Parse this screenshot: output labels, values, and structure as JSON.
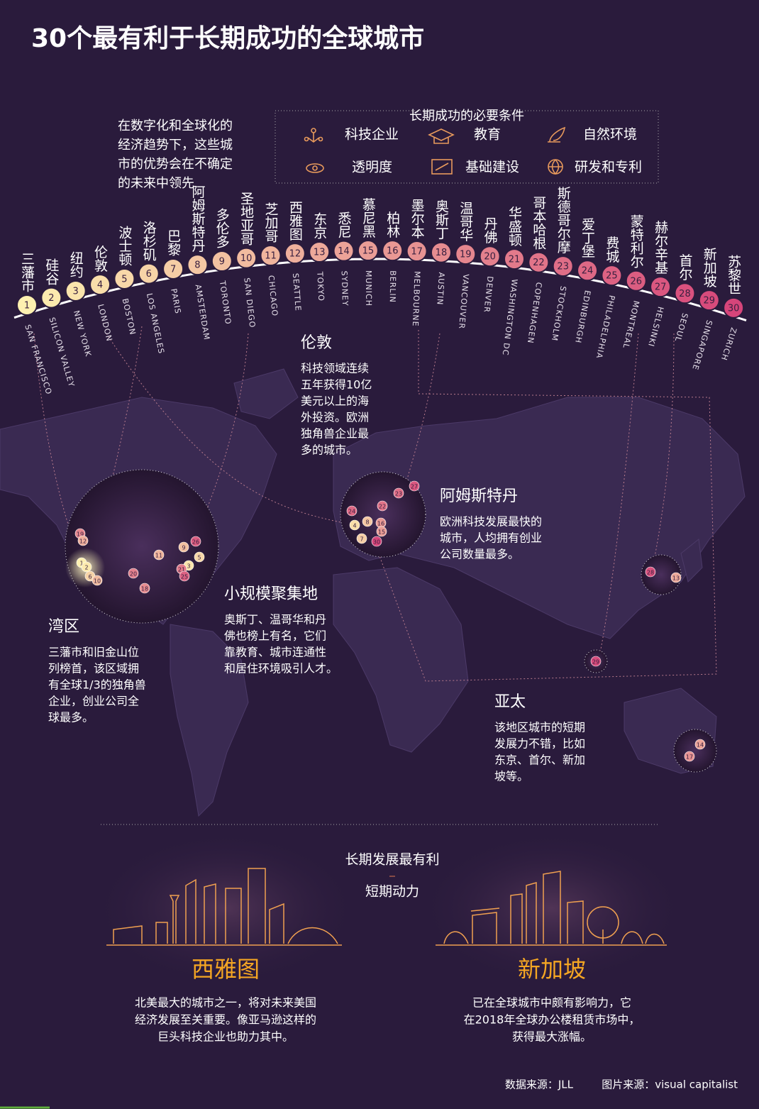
{
  "header": {
    "title": "30个最有利于长期成功的全球城市",
    "intro": [
      "在数字化和全球化的",
      "经济趋势下，这些城",
      "市的优势会在不确定",
      "的未来中领先"
    ]
  },
  "legend": {
    "title": "长期成功的必要条件",
    "items": [
      "科技企业",
      "教育",
      "自然环境",
      "透明度",
      "基础建设",
      "研发和专利"
    ]
  },
  "cities": [
    {
      "rank": 1,
      "name": "三藩市",
      "name_en": "SAN FRANCISCO"
    },
    {
      "rank": 2,
      "name": "硅谷",
      "name_en": "SILICON VALLEY"
    },
    {
      "rank": 3,
      "name": "纽约",
      "name_en": "NEW YORK"
    },
    {
      "rank": 4,
      "name": "伦敦",
      "name_en": "LONDON"
    },
    {
      "rank": 5,
      "name": "波士顿",
      "name_en": "BOSTON"
    },
    {
      "rank": 6,
      "name": "洛杉矶",
      "name_en": "LOS ANGELES"
    },
    {
      "rank": 7,
      "name": "巴黎",
      "name_en": "PARIS"
    },
    {
      "rank": 8,
      "name": "阿姆斯特丹",
      "name_en": "AMSTERDAM"
    },
    {
      "rank": 9,
      "name": "多伦多",
      "name_en": "TORONTO"
    },
    {
      "rank": 10,
      "name": "圣地亚哥",
      "name_en": "SAN DIEGO"
    },
    {
      "rank": 11,
      "name": "芝加哥",
      "name_en": "CHICAGO"
    },
    {
      "rank": 12,
      "name": "西雅图",
      "name_en": "SEATTLE"
    },
    {
      "rank": 13,
      "name": "东京",
      "name_en": "TOKYO"
    },
    {
      "rank": 14,
      "name": "悉尼",
      "name_en": "SYDNEY"
    },
    {
      "rank": 15,
      "name": "慕尼黑",
      "name_en": "MUNICH"
    },
    {
      "rank": 16,
      "name": "柏林",
      "name_en": "BERLIN"
    },
    {
      "rank": 17,
      "name": "墨尔本",
      "name_en": "MELBOURNE"
    },
    {
      "rank": 18,
      "name": "奥斯丁",
      "name_en": "AUSTIN"
    },
    {
      "rank": 19,
      "name": "温哥华",
      "name_en": "VANCOUVER"
    },
    {
      "rank": 20,
      "name": "丹佛",
      "name_en": "DENVER"
    },
    {
      "rank": 21,
      "name": "华盛顿",
      "name_en": "WASHINGTON DC"
    },
    {
      "rank": 22,
      "name": "哥本哈根",
      "name_en": "COPENHAGEN"
    },
    {
      "rank": 23,
      "name": "斯德哥尔摩",
      "name_en": "STOCKHOLM"
    },
    {
      "rank": 24,
      "name": "爱丁堡",
      "name_en": "EDINBURGH"
    },
    {
      "rank": 25,
      "name": "费城",
      "name_en": "PHILADELPHIA"
    },
    {
      "rank": 26,
      "name": "蒙特利尔",
      "name_en": "MONTREAL"
    },
    {
      "rank": 27,
      "name": "赫尔辛基",
      "name_en": "HELSINKI"
    },
    {
      "rank": 28,
      "name": "首尔",
      "name_en": "SEOUL"
    },
    {
      "rank": 29,
      "name": "新加坡",
      "name_en": "SINGAPORE"
    },
    {
      "rank": 30,
      "name": "苏黎世",
      "name_en": "ZURICH"
    }
  ],
  "map_markers": [
    19,
    12,
    1,
    2,
    6,
    10,
    11,
    9,
    26,
    3,
    5,
    21,
    25,
    20,
    18,
    27,
    23,
    22,
    24,
    8,
    16,
    4,
    15,
    7,
    30,
    28,
    13,
    29,
    14,
    17
  ],
  "annotations": [
    {
      "title": "伦敦",
      "lines": [
        "科技领域连续",
        "五年获得10亿",
        "美元以上的海",
        "外投资。欧洲",
        "独角兽企业最",
        "多的城市。"
      ]
    },
    {
      "title": "阿姆斯特丹",
      "lines": [
        "欧洲科技发展最快的",
        "城市，人均拥有创业",
        "公司数量最多。"
      ]
    },
    {
      "title": "小规模聚集地",
      "lines": [
        "奥斯丁、温哥华和丹",
        "佛也榜上有名，它们",
        "靠教育、城市连通性",
        "和居住环境吸引人才。"
      ]
    },
    {
      "title": "湾区",
      "lines": [
        "三藩市和旧金山位",
        "列榜首，该区域拥",
        "有全球1/3的独角兽",
        "企业，创业公司全",
        "球最多。"
      ]
    },
    {
      "title": "亚太",
      "lines": [
        "该地区城市的短期",
        "发展力不错，比如",
        "东京、首尔、新加",
        "坡等。"
      ]
    }
  ],
  "bottom": {
    "long_term": "长期发展最有利",
    "short_term": "短期动力",
    "cities": [
      {
        "name": "西雅图",
        "lines": [
          "北美最大的城市之一，将对未来美国",
          "经济发展至关重要。像亚马逊这样的",
          "巨头科技企业也助力其中。"
        ]
      },
      {
        "name": "新加坡",
        "lines": [
          "已在全球城市中颇有影响力，它",
          "在2018年全球办公楼租赁市场中，",
          "获得最大涨幅。"
        ]
      }
    ]
  },
  "footer": {
    "data_source": "数据来源：JLL",
    "image_source": "图片来源：visual capitalist"
  }
}
